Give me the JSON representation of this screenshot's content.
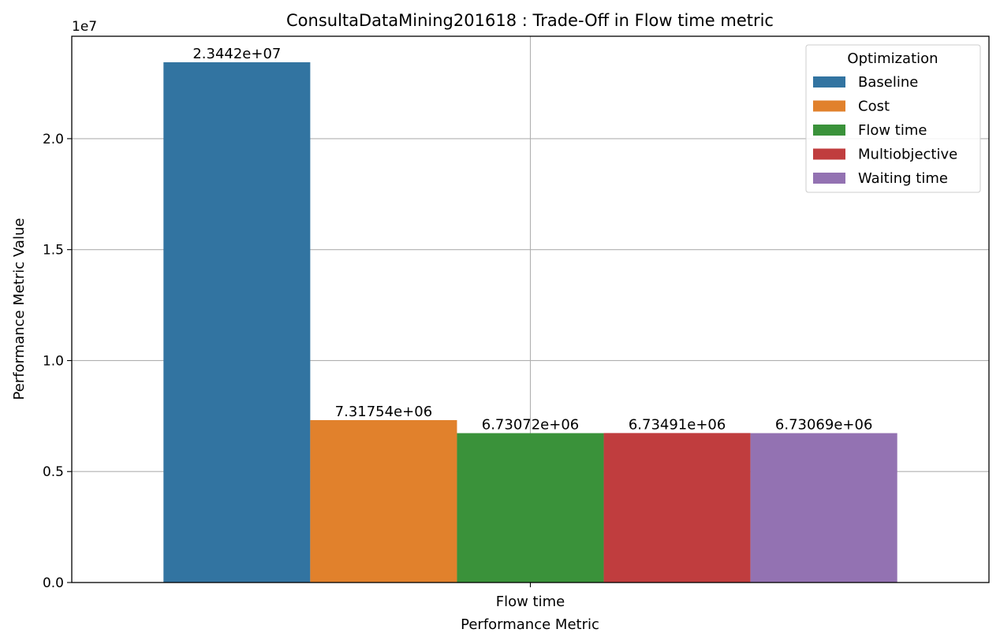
{
  "chart_data": {
    "type": "bar",
    "title": "ConsultaDataMining201618 : Trade-Off in Flow time metric",
    "xlabel": "Performance Metric",
    "ylabel": "Performance Metric Value",
    "y_scale_note": "1e7",
    "categories": [
      "Flow time"
    ],
    "ylim": [
      0,
      24614100
    ],
    "yticks": [
      0,
      5000000,
      10000000,
      15000000,
      20000000
    ],
    "ytick_labels": [
      "0.0",
      "0.5",
      "1.0",
      "1.5",
      "2.0"
    ],
    "grid": true,
    "legend": {
      "title": "Optimization",
      "placement": "top-right"
    },
    "series": [
      {
        "name": "Baseline",
        "values": [
          23442000
        ],
        "label": "2.3442e+07",
        "color": "#3274a1"
      },
      {
        "name": "Cost",
        "values": [
          7317540
        ],
        "label": "7.31754e+06",
        "color": "#e1812c"
      },
      {
        "name": "Flow time",
        "values": [
          6730720
        ],
        "label": "6.73072e+06",
        "color": "#3a923a"
      },
      {
        "name": "Multiobjective",
        "values": [
          6734910
        ],
        "label": "6.73491e+06",
        "color": "#c03d3e"
      },
      {
        "name": "Waiting time",
        "values": [
          6730690
        ],
        "label": "6.73069e+06",
        "color": "#9372b2"
      }
    ]
  }
}
